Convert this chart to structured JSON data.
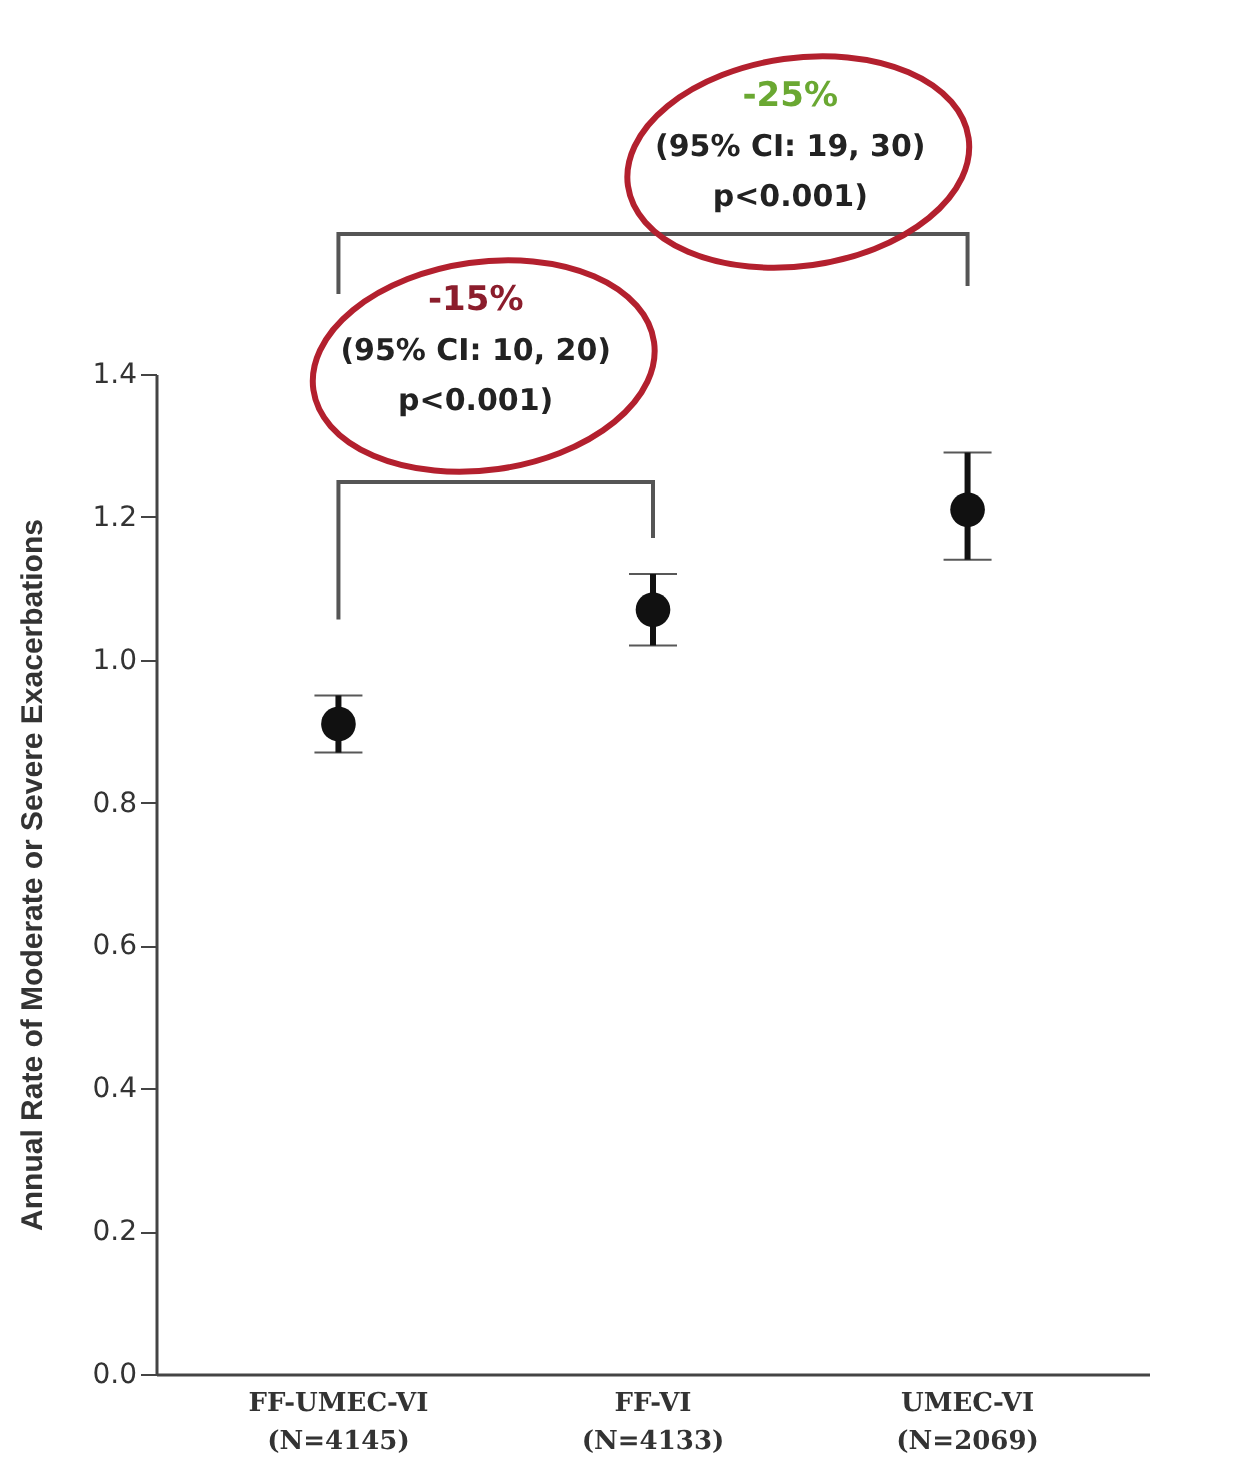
{
  "chart_data": {
    "type": "scatter",
    "ylabel": "Annual Rate of Moderate or Severe Exacerbations",
    "categories": [
      "FF-UMEC-VI\n(N=4145)",
      "FF-VI\n(N=4133)",
      "UMEC-VI\n(N=2069)"
    ],
    "values": [
      0.91,
      1.07,
      1.21
    ],
    "errors": [
      [
        0.87,
        0.95
      ],
      [
        1.02,
        1.12
      ],
      [
        1.14,
        1.29
      ]
    ],
    "color": "#111111",
    "marker": "circle",
    "grid": false,
    "ylim": [
      0,
      1.4
    ],
    "yticks": [
      {
        "value": 0,
        "label": "0.0"
      },
      0.2,
      0.4,
      0.6,
      0.8,
      {
        "value": 1,
        "label": "1.0"
      },
      1.2,
      1.4
    ],
    "annotations": [
      "-25%",
      "(95% CI: 19, 30)",
      "p<0.001)",
      "-15%",
      "(95% CI: 10, 20)",
      "p<0.001)"
    ]
  }
}
